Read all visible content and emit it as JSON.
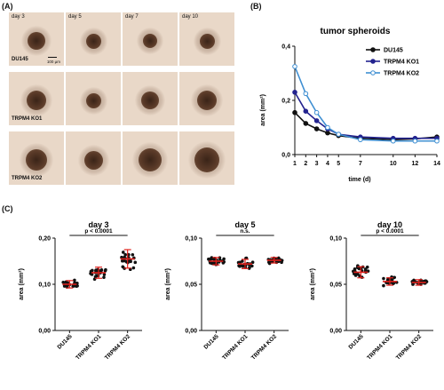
{
  "panel_a": {
    "label": "(A)",
    "days": [
      "day 3",
      "day 5",
      "day 7",
      "day 10"
    ],
    "cell_lines": [
      "DU145",
      "TRPM4 KO1",
      "TRPM4 KO2"
    ],
    "scale_bar": "100 µm"
  },
  "panel_b_label": "(B)",
  "panel_c_label": "(C)",
  "chart_data": [
    {
      "type": "line",
      "title": "tumor spheroids",
      "xlabel": "time (d)",
      "ylabel": "area (mm²)",
      "xlim": [
        1,
        14
      ],
      "ylim": [
        0,
        0.4
      ],
      "x_ticks": [
        "1",
        "2",
        "3",
        "4",
        "5",
        "7",
        "10",
        "12",
        "14"
      ],
      "y_ticks": [
        "0,0",
        "0,2",
        "0,4"
      ],
      "legend_position": "right",
      "series": [
        {
          "name": "DU145",
          "color": "#111111",
          "marker": "filled",
          "x": [
            1,
            2,
            3,
            4,
            5,
            7,
            10,
            12,
            14
          ],
          "y": [
            0.155,
            0.115,
            0.095,
            0.08,
            0.07,
            0.06,
            0.055,
            0.058,
            0.065
          ]
        },
        {
          "name": "TRPM4 KO1",
          "color": "#23238f",
          "marker": "filled",
          "x": [
            1,
            2,
            3,
            4,
            5,
            7,
            10,
            12,
            14
          ],
          "y": [
            0.23,
            0.16,
            0.125,
            0.095,
            0.075,
            0.065,
            0.06,
            0.06,
            0.06
          ]
        },
        {
          "name": "TRPM4 KO2",
          "color": "#3f8fd2",
          "marker": "open",
          "x": [
            1,
            2,
            3,
            4,
            5,
            7,
            10,
            12,
            14
          ],
          "y": [
            0.325,
            0.225,
            0.155,
            0.1,
            0.075,
            0.055,
            0.05,
            0.05,
            0.05
          ]
        }
      ]
    },
    {
      "type": "scatter",
      "title": "day 3",
      "ylabel": "area (mm²)",
      "categories": [
        "DU145",
        "TRPM4 KO1",
        "TRPM4 KO2"
      ],
      "ylim": [
        0,
        0.2
      ],
      "y_ticks": [
        "0,00",
        "0,10",
        "0,20"
      ],
      "means": [
        0.1,
        0.125,
        0.155
      ],
      "sd": [
        0.008,
        0.012,
        0.02
      ],
      "spread": [
        0.012,
        0.016,
        0.028
      ],
      "annotation": "p < 0.0001"
    },
    {
      "type": "scatter",
      "title": "day 5",
      "ylabel": "area (mm²)",
      "categories": [
        "DU145",
        "TRPM4 KO1",
        "TRPM4 KO2"
      ],
      "ylim": [
        0,
        0.1
      ],
      "y_ticks": [
        "0,00",
        "0,05",
        "0,10"
      ],
      "means": [
        0.075,
        0.072,
        0.076
      ],
      "sd": [
        0.004,
        0.005,
        0.003
      ],
      "spread": [
        0.006,
        0.008,
        0.005
      ],
      "annotation": "n.s."
    },
    {
      "type": "scatter",
      "title": "day 10",
      "ylabel": "area (mm²)",
      "categories": [
        "DU145",
        "TRPM4 KO1",
        "TRPM4 KO2"
      ],
      "ylim": [
        0,
        0.1
      ],
      "y_ticks": [
        "0,00",
        "0,05",
        "0,10"
      ],
      "means": [
        0.063,
        0.053,
        0.052
      ],
      "sd": [
        0.006,
        0.004,
        0.003
      ],
      "spread": [
        0.01,
        0.007,
        0.005
      ],
      "annotation": "p < 0.0001"
    }
  ]
}
